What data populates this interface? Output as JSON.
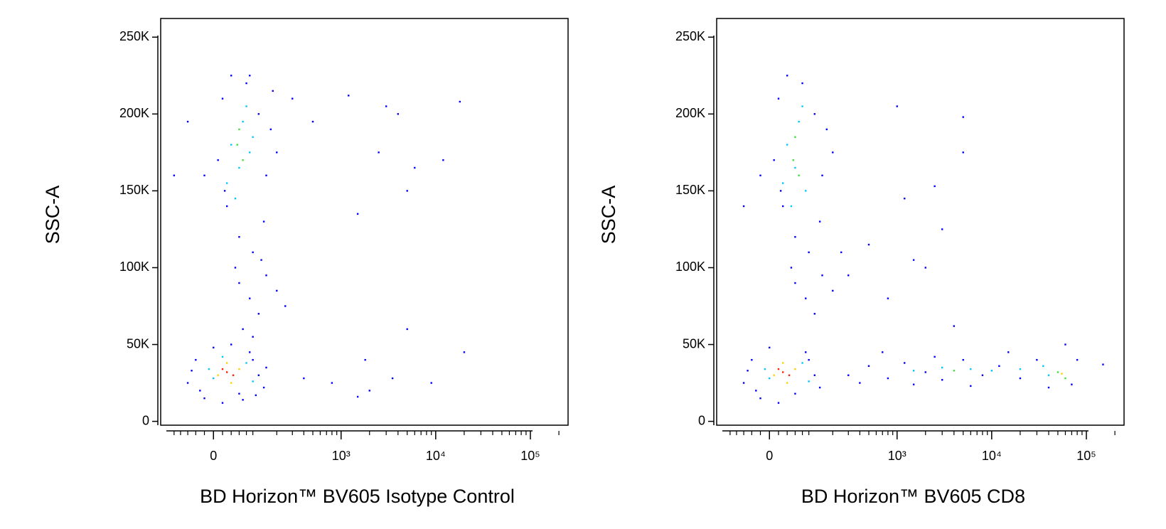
{
  "chart_data": [
    {
      "type": "scatter",
      "xlabel": "BD Horizon™ BV605 Isotype Control",
      "ylabel": "SSC-A",
      "xscale": "biex",
      "xlim": [
        -150,
        250000
      ],
      "ylim": [
        -2500,
        262144
      ],
      "xticks": [
        0,
        {
          "value": 1000,
          "label": "10³"
        },
        {
          "value": 10000,
          "label": "10⁴"
        },
        {
          "value": 100000,
          "label": "10⁵"
        }
      ],
      "xminorticks": [
        -100,
        -80,
        -60,
        -40,
        -20,
        20,
        40,
        60,
        80,
        100,
        200,
        300,
        400,
        500,
        600,
        700,
        800,
        900,
        2000,
        3000,
        4000,
        5000,
        6000,
        7000,
        8000,
        9000,
        20000,
        30000,
        40000,
        50000,
        60000,
        70000,
        80000,
        90000,
        200000
      ],
      "yticks": [
        0,
        {
          "value": 50000,
          "label": "50K"
        },
        {
          "value": 100000,
          "label": "100K"
        },
        {
          "value": 150000,
          "label": "150K"
        },
        {
          "value": 200000,
          "label": "200K"
        },
        {
          "value": 250000,
          "label": "250K"
        }
      ],
      "series": [
        {
          "color": "#0000ff",
          "x": [
            -60,
            -40,
            -20,
            -50,
            0,
            20,
            60,
            90,
            120,
            140,
            100,
            -30,
            40,
            70,
            150,
            110,
            10,
            20,
            30,
            40,
            60,
            80,
            120,
            150,
            170,
            140,
            100,
            50,
            25,
            200,
            180,
            90,
            -20,
            -60,
            -100,
            60,
            90,
            120,
            70,
            100,
            150,
            200,
            250,
            130,
            300,
            500,
            1200,
            3000,
            4000,
            18000,
            1500,
            2500,
            6000,
            12000,
            5000,
            1800,
            5000,
            20000,
            800,
            2000,
            9000,
            1500,
            3500,
            400
          ],
          "values": [
            25000,
            40000,
            15000,
            33000,
            48000,
            12000,
            18000,
            45000,
            30000,
            22000,
            40000,
            20000,
            50000,
            14000,
            35000,
            17000,
            170000,
            210000,
            140000,
            225000,
            120000,
            220000,
            200000,
            160000,
            190000,
            130000,
            110000,
            100000,
            150000,
            175000,
            215000,
            225000,
            160000,
            195000,
            160000,
            90000,
            80000,
            70000,
            60000,
            55000,
            95000,
            85000,
            75000,
            105000,
            210000,
            195000,
            212000,
            205000,
            200000,
            208000,
            135000,
            175000,
            165000,
            170000,
            150000,
            40000,
            60000,
            45000,
            25000,
            20000,
            25000,
            16000,
            28000,
            28000
          ]
        },
        {
          "color": "#00c8ff",
          "x": [
            40,
            70,
            60,
            90,
            30,
            80,
            50,
            100,
            0,
            80,
            20,
            100,
            -10
          ],
          "values": [
            180000,
            195000,
            165000,
            175000,
            155000,
            205000,
            145000,
            185000,
            28000,
            38000,
            42000,
            26000,
            34000
          ]
        },
        {
          "color": "#40e040",
          "x": [
            55,
            70,
            60
          ],
          "values": [
            180000,
            170000,
            190000
          ]
        },
        {
          "color": "#ffd000",
          "x": [
            10,
            60,
            40,
            30
          ],
          "values": [
            30000,
            34000,
            25000,
            38000
          ]
        },
        {
          "color": "#ff2000",
          "x": [
            30,
            45,
            20
          ],
          "values": [
            32000,
            30000,
            34000
          ]
        }
      ]
    },
    {
      "type": "scatter",
      "xlabel": "BD Horizon™ BV605 CD8",
      "ylabel": "SSC-A",
      "xscale": "biex",
      "xlim": [
        -150,
        250000
      ],
      "ylim": [
        -2500,
        262144
      ],
      "xticks": [
        0,
        {
          "value": 1000,
          "label": "10³"
        },
        {
          "value": 10000,
          "label": "10⁴"
        },
        {
          "value": 100000,
          "label": "10⁵"
        }
      ],
      "xminorticks": [
        -100,
        -80,
        -60,
        -40,
        -20,
        20,
        40,
        60,
        80,
        100,
        200,
        300,
        400,
        500,
        600,
        700,
        800,
        900,
        2000,
        3000,
        4000,
        5000,
        6000,
        7000,
        8000,
        9000,
        20000,
        30000,
        40000,
        50000,
        60000,
        70000,
        80000,
        90000,
        200000
      ],
      "yticks": [
        0,
        {
          "value": 50000,
          "label": "50K"
        },
        {
          "value": 100000,
          "label": "100K"
        },
        {
          "value": 150000,
          "label": "150K"
        },
        {
          "value": 200000,
          "label": "200K"
        },
        {
          "value": 250000,
          "label": "250K"
        }
      ],
      "series": [
        {
          "color": "#0000ff",
          "x": [
            -60,
            -40,
            -20,
            -50,
            0,
            20,
            60,
            90,
            120,
            140,
            100,
            -30,
            10,
            20,
            30,
            40,
            60,
            80,
            120,
            150,
            170,
            140,
            100,
            50,
            25,
            200,
            -20,
            -60,
            60,
            90,
            120,
            150,
            200,
            250,
            300,
            500,
            800,
            1200,
            2000,
            3000,
            5000,
            8000,
            12000,
            20000,
            30000,
            40000,
            70000,
            80000,
            150000,
            700,
            2500,
            15000,
            60000,
            400,
            1500,
            6000,
            1000,
            5000,
            5000,
            2500,
            1200,
            3000,
            2000,
            1500,
            4000,
            500,
            300,
            800
          ],
          "values": [
            25000,
            40000,
            15000,
            33000,
            48000,
            12000,
            18000,
            45000,
            30000,
            22000,
            40000,
            20000,
            170000,
            210000,
            140000,
            225000,
            120000,
            220000,
            200000,
            160000,
            190000,
            130000,
            110000,
            100000,
            150000,
            175000,
            160000,
            140000,
            90000,
            80000,
            70000,
            95000,
            85000,
            110000,
            30000,
            36000,
            28000,
            38000,
            32000,
            27000,
            40000,
            30000,
            36000,
            28000,
            40000,
            22000,
            24000,
            40000,
            37000,
            45000,
            42000,
            45000,
            50000,
            25000,
            24000,
            23000,
            205000,
            198000,
            175000,
            153000,
            145000,
            125000,
            100000,
            105000,
            62000,
            115000,
            95000,
            80000
          ]
        },
        {
          "color": "#00c8ff",
          "x": [
            40,
            70,
            60,
            90,
            30,
            80,
            50,
            0,
            80,
            100,
            -10,
            1500,
            3000,
            6000,
            10000,
            20000,
            40000,
            35000
          ],
          "values": [
            180000,
            195000,
            165000,
            150000,
            155000,
            205000,
            140000,
            28000,
            38000,
            26000,
            34000,
            33000,
            35000,
            34000,
            33000,
            34000,
            30000,
            36000
          ]
        },
        {
          "color": "#40e040",
          "x": [
            55,
            70,
            60,
            50000,
            60000,
            4000
          ],
          "values": [
            170000,
            160000,
            185000,
            32000,
            28000,
            33000
          ]
        },
        {
          "color": "#ffd000",
          "x": [
            10,
            60,
            40,
            30,
            55000
          ],
          "values": [
            30000,
            34000,
            25000,
            38000,
            31000
          ]
        },
        {
          "color": "#ff2000",
          "x": [
            30,
            45,
            20
          ],
          "values": [
            32000,
            30000,
            34000
          ]
        }
      ]
    }
  ]
}
